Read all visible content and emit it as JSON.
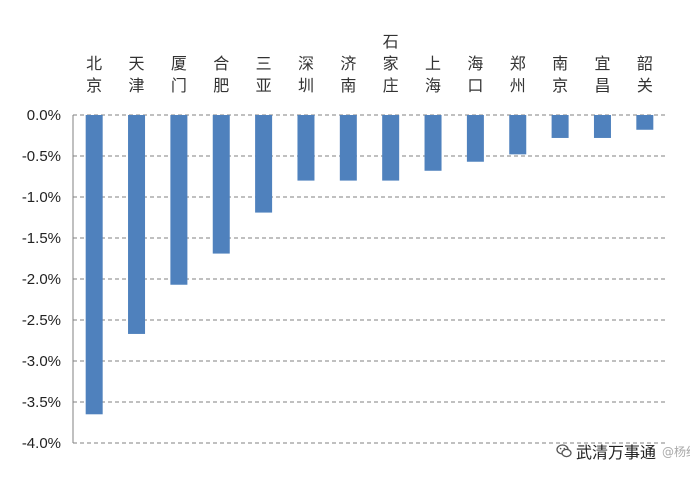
{
  "chart_data": {
    "type": "bar",
    "categories": [
      "北京",
      "天津",
      "厦门",
      "合肥",
      "三亚",
      "深圳",
      "济南",
      "石家庄",
      "上海",
      "海口",
      "郑州",
      "南京",
      "宜昌",
      "韶关"
    ],
    "values": [
      -3.65,
      -2.67,
      -2.07,
      -1.69,
      -1.19,
      -0.8,
      -0.8,
      -0.8,
      -0.68,
      -0.57,
      -0.48,
      -0.28,
      -0.28,
      -0.18
    ],
    "ylim": [
      -4.0,
      0.0
    ],
    "yticks": [
      0.0,
      -0.5,
      -1.0,
      -1.5,
      -2.0,
      -2.5,
      -3.0,
      -3.5,
      -4.0
    ],
    "ytick_labels": [
      "0.0%",
      "-0.5%",
      "-1.0%",
      "-1.5%",
      "-2.0%",
      "-2.5%",
      "-3.0%",
      "-3.5%",
      "-4.0%"
    ],
    "category_axis_position": "top",
    "grid": true,
    "bar_color": "#4f81bd"
  },
  "watermark": {
    "text": "武清万事通",
    "handle": "@杨红旭",
    "icon": "wechat-icon"
  }
}
